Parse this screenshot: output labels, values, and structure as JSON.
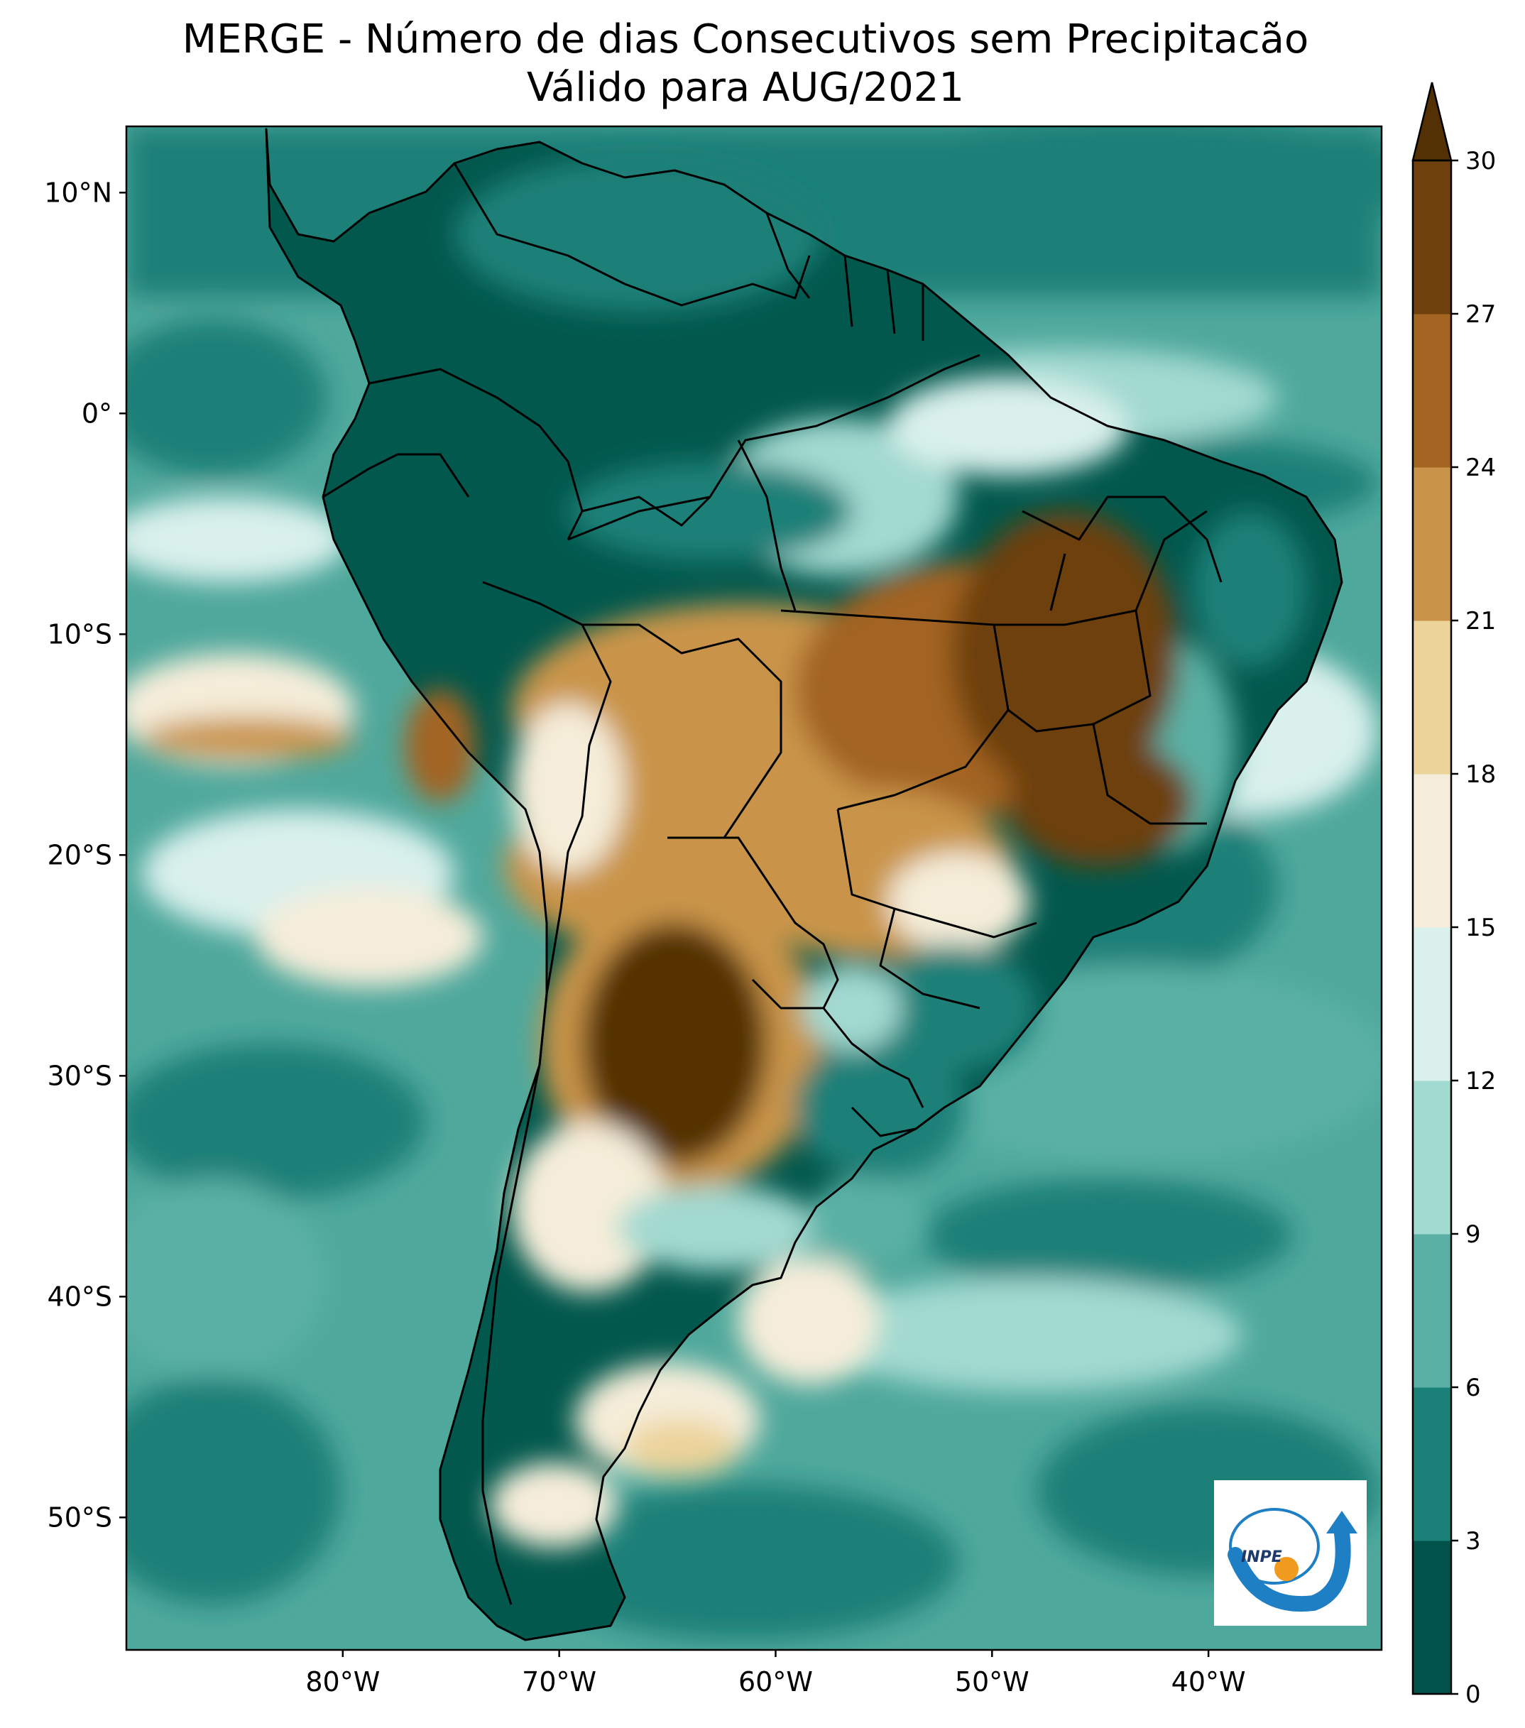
{
  "title": {
    "line1": "MERGE - Número de dias Consecutivos sem Precipitacão",
    "line2": "Válido para AUG/2021"
  },
  "map": {
    "lon_range": [
      -90,
      -32
    ],
    "lat_range": [
      -56,
      13
    ],
    "lon_ticks": [
      {
        "value": -80,
        "label": "80°W"
      },
      {
        "value": -70,
        "label": "70°W"
      },
      {
        "value": -60,
        "label": "60°W"
      },
      {
        "value": -50,
        "label": "50°W"
      },
      {
        "value": -40,
        "label": "40°W"
      }
    ],
    "lat_ticks": [
      {
        "value": 10,
        "label": "10°N"
      },
      {
        "value": 0,
        "label": "0°"
      },
      {
        "value": -10,
        "label": "10°S"
      },
      {
        "value": -20,
        "label": "20°S"
      },
      {
        "value": -30,
        "label": "30°S"
      },
      {
        "value": -40,
        "label": "40°S"
      },
      {
        "value": -50,
        "label": "50°S"
      }
    ]
  },
  "colorbar": {
    "extend": "max",
    "levels": [
      0,
      3,
      6,
      9,
      12,
      15,
      18,
      21,
      24,
      27,
      30
    ],
    "labels": [
      "0",
      "3",
      "6",
      "9",
      "12",
      "15",
      "18",
      "21",
      "24",
      "27",
      "30"
    ],
    "colors": [
      "#01524a",
      "#1a8078",
      "#5ab0a4",
      "#a2d9d0",
      "#d9f0ec",
      "#f5edd9",
      "#ecd39a",
      "#c99449",
      "#a36422",
      "#6d400c"
    ],
    "extend_color": "#543005"
  },
  "logo": {
    "text": "INPE"
  },
  "colors": {
    "ocean_base": "#4fa89c",
    "land_dark": "#02584d",
    "border": "#000000",
    "logo_blue": "#1e7fc4",
    "logo_orange": "#f09a1e"
  }
}
